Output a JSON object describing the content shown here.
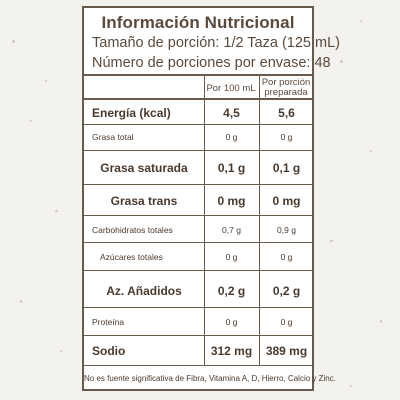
{
  "panel": {
    "title": "Información Nutricional",
    "serving_size": "Tamaño de porción: 1/2 Taza (125 mL)",
    "servings_per_container": "Número de porciones por envase: 48"
  },
  "columns": {
    "per_100": "Por 100 mL",
    "per_portion": "Por porción preparada"
  },
  "rows": [
    {
      "label": "Energía (kcal)",
      "per_100": "4,5",
      "per_portion": "5,6"
    },
    {
      "label": "Grasa total",
      "per_100": "0 g",
      "per_portion": "0 g"
    },
    {
      "label": "Grasa saturada",
      "per_100": "0,1 g",
      "per_portion": "0,1 g"
    },
    {
      "label": "Grasa trans",
      "per_100": "0 mg",
      "per_portion": "0 mg"
    },
    {
      "label": "Carbohidratos totales",
      "per_100": "0,7 g",
      "per_portion": "0,9 g"
    },
    {
      "label": "Azúcares totales",
      "per_100": "0 g",
      "per_portion": "0 g"
    },
    {
      "label": "Az. Añadidos",
      "per_100": "0,2 g",
      "per_portion": "0,2 g"
    },
    {
      "label": "Proteína",
      "per_100": "0 g",
      "per_portion": "0 g"
    },
    {
      "label": "Sodio",
      "per_100": "312 mg",
      "per_portion": "389 mg"
    }
  ],
  "footnote": "No es fuente significativa de Fibra, Vitamina A, D, Hierro, Calcio y Zinc."
}
